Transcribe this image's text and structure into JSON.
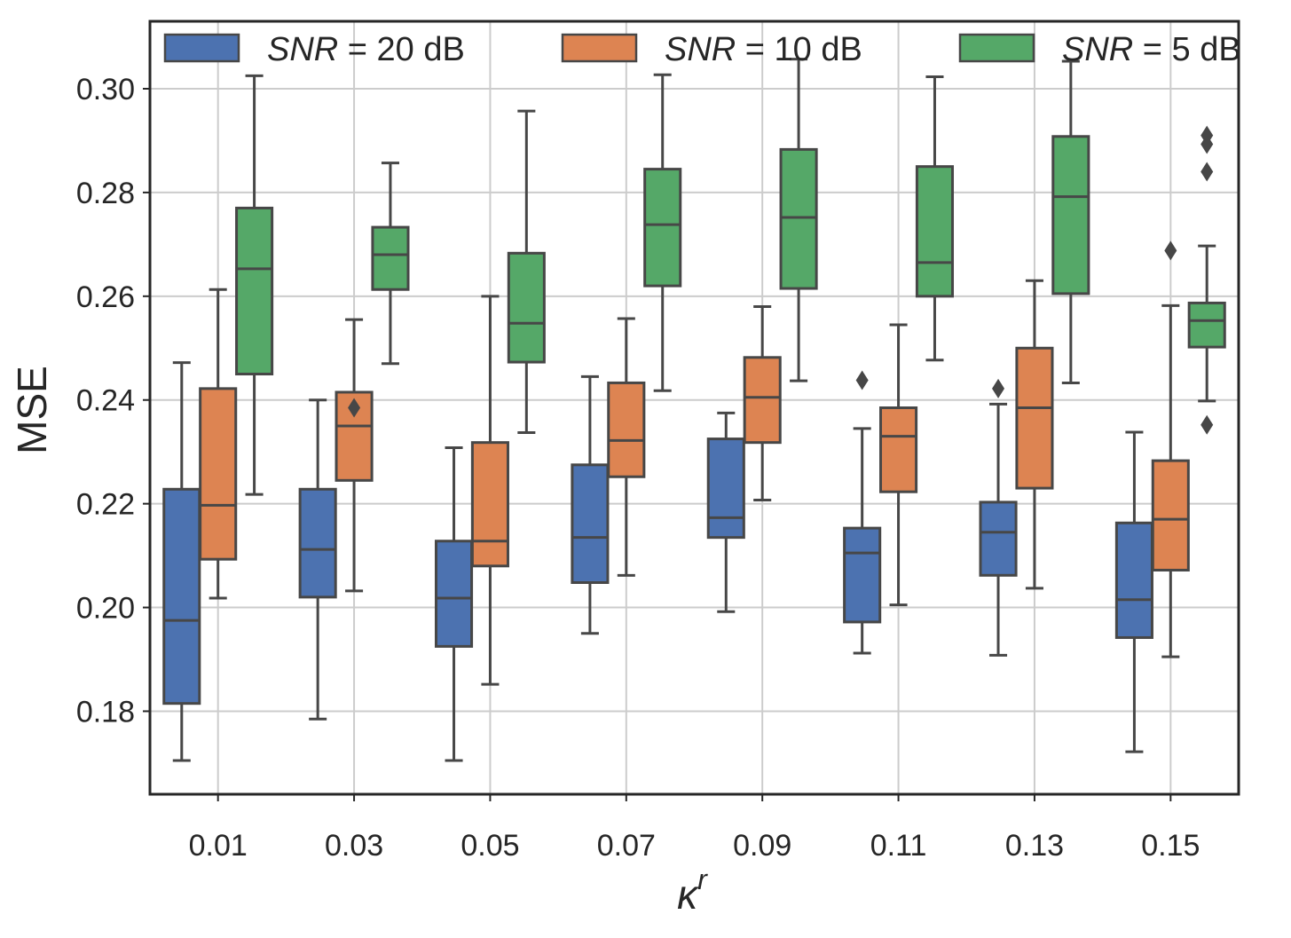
{
  "chart_data": {
    "type": "box",
    "title": "",
    "xlabel": "κ",
    "xlabel_superscript": "r",
    "ylabel": "MSE",
    "ylim": [
      0.164,
      0.313
    ],
    "yticks": [
      "0.18",
      "0.20",
      "0.22",
      "0.24",
      "0.26",
      "0.28",
      "0.30"
    ],
    "ytick_values": [
      0.18,
      0.2,
      0.22,
      0.24,
      0.26,
      0.28,
      0.3
    ],
    "categories": [
      "0.01",
      "0.03",
      "0.05",
      "0.07",
      "0.09",
      "0.11",
      "0.13",
      "0.15"
    ],
    "grid": true,
    "legend_position": "top",
    "series": [
      {
        "name": "SNR = 20 dB",
        "legend_italic": "SNR",
        "legend_rest": " = 20 dB",
        "color": "#4c72b0",
        "boxes": [
          {
            "whislo": 0.1705,
            "q1": 0.1815,
            "med": 0.1975,
            "q3": 0.2228,
            "whishi": 0.2472,
            "fliers": []
          },
          {
            "whislo": 0.1785,
            "q1": 0.202,
            "med": 0.2112,
            "q3": 0.2228,
            "whishi": 0.24,
            "fliers": []
          },
          {
            "whislo": 0.1705,
            "q1": 0.1925,
            "med": 0.2018,
            "q3": 0.2128,
            "whishi": 0.2308,
            "fliers": []
          },
          {
            "whislo": 0.195,
            "q1": 0.2048,
            "med": 0.2135,
            "q3": 0.2275,
            "whishi": 0.2445,
            "fliers": []
          },
          {
            "whislo": 0.1992,
            "q1": 0.2135,
            "med": 0.2173,
            "q3": 0.2325,
            "whishi": 0.2375,
            "fliers": []
          },
          {
            "whislo": 0.1912,
            "q1": 0.1972,
            "med": 0.2105,
            "q3": 0.2153,
            "whishi": 0.2345,
            "fliers": [
              0.2438
            ]
          },
          {
            "whislo": 0.1908,
            "q1": 0.2062,
            "med": 0.2145,
            "q3": 0.2203,
            "whishi": 0.2392,
            "fliers": [
              0.2422
            ]
          },
          {
            "whislo": 0.1722,
            "q1": 0.1942,
            "med": 0.2015,
            "q3": 0.2163,
            "whishi": 0.2338,
            "fliers": []
          }
        ]
      },
      {
        "name": "SNR = 10 dB",
        "legend_italic": "SNR",
        "legend_rest": " = 10 dB",
        "color": "#dd8452",
        "boxes": [
          {
            "whislo": 0.2018,
            "q1": 0.2093,
            "med": 0.2197,
            "q3": 0.2422,
            "whishi": 0.2613,
            "fliers": []
          },
          {
            "whislo": 0.2032,
            "q1": 0.2245,
            "med": 0.235,
            "q3": 0.2415,
            "whishi": 0.2555,
            "fliers": [
              0.2385
            ]
          },
          {
            "whislo": 0.1852,
            "q1": 0.208,
            "med": 0.2128,
            "q3": 0.2318,
            "whishi": 0.26,
            "fliers": []
          },
          {
            "whislo": 0.2062,
            "q1": 0.2252,
            "med": 0.2322,
            "q3": 0.2433,
            "whishi": 0.2557,
            "fliers": []
          },
          {
            "whislo": 0.2207,
            "q1": 0.2318,
            "med": 0.2405,
            "q3": 0.2482,
            "whishi": 0.258,
            "fliers": []
          },
          {
            "whislo": 0.2005,
            "q1": 0.2223,
            "med": 0.233,
            "q3": 0.2385,
            "whishi": 0.2545,
            "fliers": []
          },
          {
            "whislo": 0.2037,
            "q1": 0.223,
            "med": 0.2385,
            "q3": 0.25,
            "whishi": 0.263,
            "fliers": []
          },
          {
            "whislo": 0.1905,
            "q1": 0.2072,
            "med": 0.217,
            "q3": 0.2283,
            "whishi": 0.2582,
            "fliers": [
              0.2688
            ]
          }
        ]
      },
      {
        "name": "SNR = 5 dB",
        "legend_italic": "SNR",
        "legend_rest": " = 5 dB",
        "color": "#55a868",
        "boxes": [
          {
            "whislo": 0.2218,
            "q1": 0.245,
            "med": 0.2653,
            "q3": 0.277,
            "whishi": 0.3025,
            "fliers": []
          },
          {
            "whislo": 0.247,
            "q1": 0.2613,
            "med": 0.268,
            "q3": 0.2733,
            "whishi": 0.2857,
            "fliers": []
          },
          {
            "whislo": 0.2337,
            "q1": 0.2473,
            "med": 0.2548,
            "q3": 0.2683,
            "whishi": 0.2957,
            "fliers": []
          },
          {
            "whislo": 0.2418,
            "q1": 0.262,
            "med": 0.2738,
            "q3": 0.2845,
            "whishi": 0.3027,
            "fliers": []
          },
          {
            "whislo": 0.2437,
            "q1": 0.2615,
            "med": 0.2752,
            "q3": 0.2883,
            "whishi": 0.3057,
            "fliers": []
          },
          {
            "whislo": 0.2477,
            "q1": 0.26,
            "med": 0.2665,
            "q3": 0.285,
            "whishi": 0.3023,
            "fliers": []
          },
          {
            "whislo": 0.2433,
            "q1": 0.2605,
            "med": 0.2792,
            "q3": 0.2908,
            "whishi": 0.3053,
            "fliers": []
          },
          {
            "whislo": 0.2398,
            "q1": 0.2502,
            "med": 0.2553,
            "q3": 0.2587,
            "whishi": 0.2697,
            "fliers": [
              0.291,
              0.2893,
              0.284,
              0.2352
            ]
          }
        ]
      }
    ]
  }
}
